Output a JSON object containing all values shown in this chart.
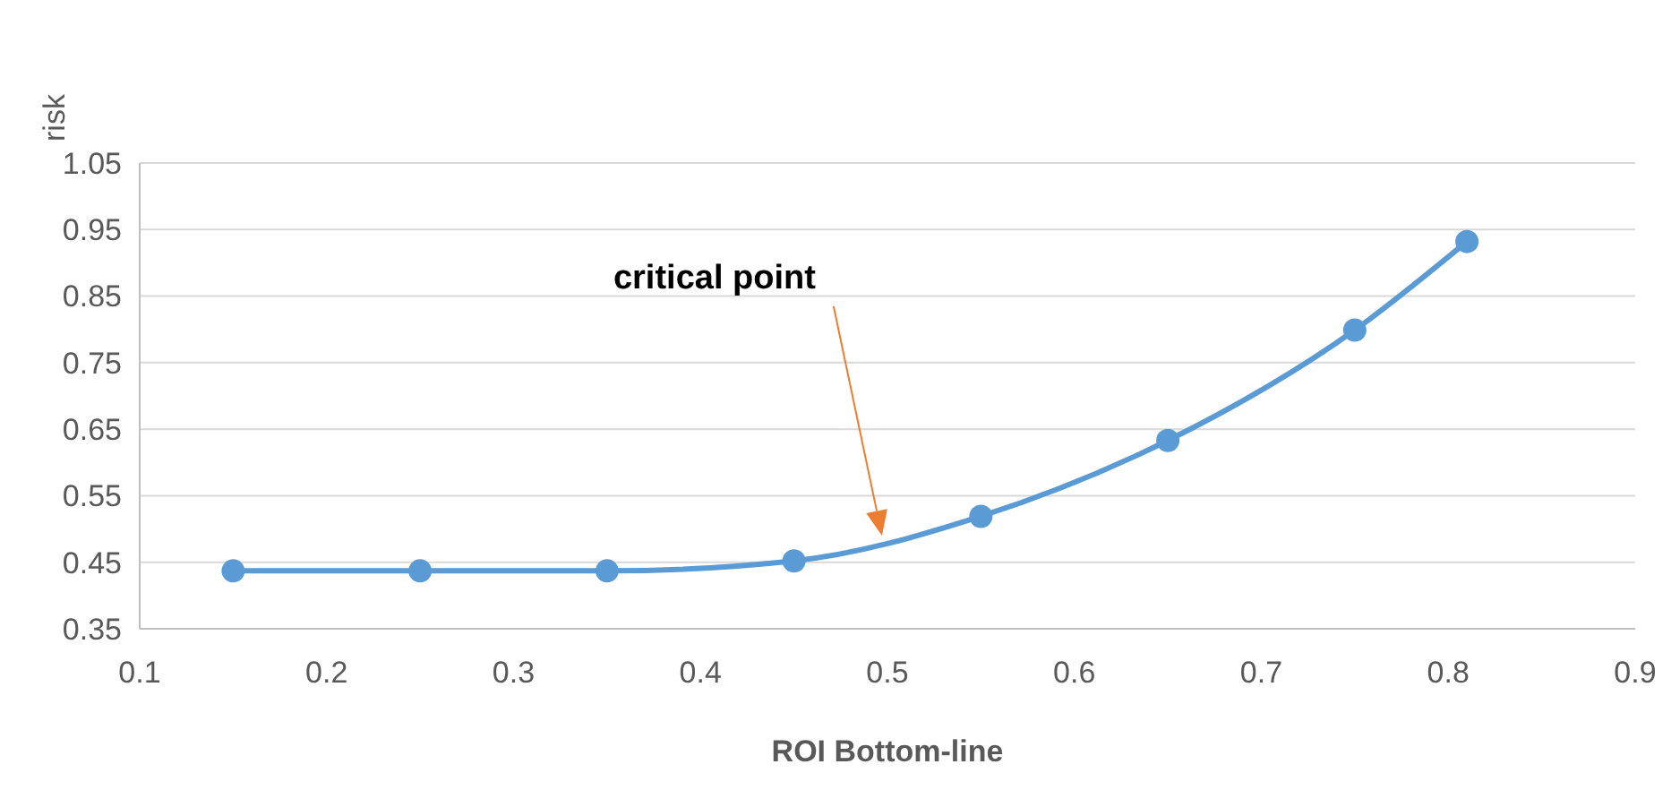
{
  "chart_data": {
    "type": "line",
    "xlabel": "ROI Bottom-line",
    "ylabel": "risk",
    "x": [
      0.15,
      0.25,
      0.35,
      0.45,
      0.55,
      0.65,
      0.75,
      0.81
    ],
    "series": [
      {
        "color": "#5b9bd5",
        "values": [
          0.437,
          0.437,
          0.437,
          0.452,
          0.519,
          0.633,
          0.799,
          0.932
        ]
      }
    ],
    "xlim": [
      0.1,
      0.9
    ],
    "xticks": [
      0.1,
      0.2,
      0.3,
      0.4,
      0.5,
      0.6,
      0.7,
      0.8,
      0.9
    ],
    "ylim": [
      0.35,
      1.05
    ],
    "yticks": [
      0.35,
      0.45,
      0.55,
      0.65,
      0.75,
      0.85,
      0.95,
      1.05
    ],
    "grid": "y",
    "marker": "circle",
    "line_style": "solid",
    "annotations": [
      "critical point"
    ]
  }
}
